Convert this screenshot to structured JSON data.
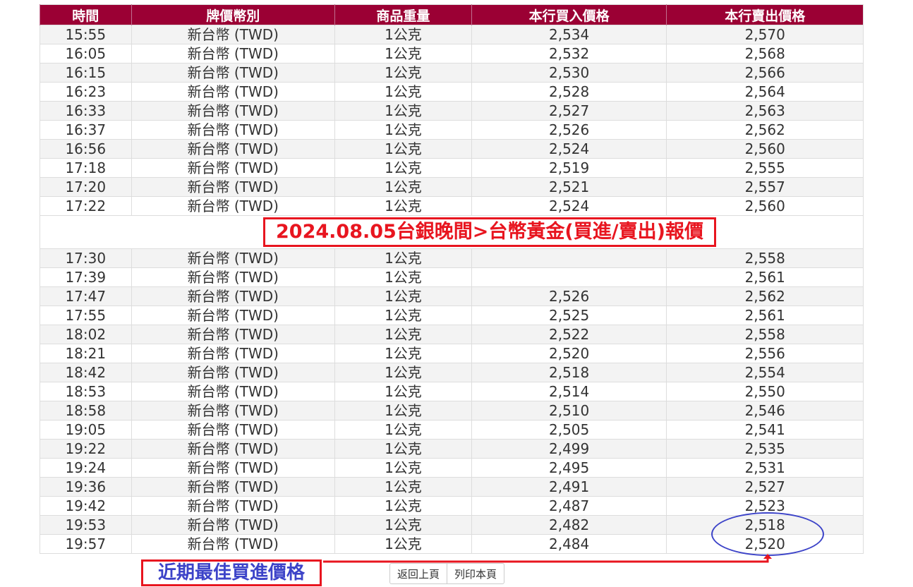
{
  "table": {
    "headers": [
      "時間",
      "牌價幣別",
      "商品重量",
      "本行買入價格",
      "本行賣出價格"
    ],
    "rows": [
      [
        "15:55",
        "新台幣 (TWD)",
        "1公克",
        "2,534",
        "2,570"
      ],
      [
        "16:05",
        "新台幣 (TWD)",
        "1公克",
        "2,532",
        "2,568"
      ],
      [
        "16:15",
        "新台幣 (TWD)",
        "1公克",
        "2,530",
        "2,566"
      ],
      [
        "16:23",
        "新台幣 (TWD)",
        "1公克",
        "2,528",
        "2,564"
      ],
      [
        "16:33",
        "新台幣 (TWD)",
        "1公克",
        "2,527",
        "2,563"
      ],
      [
        "16:37",
        "新台幣 (TWD)",
        "1公克",
        "2,526",
        "2,562"
      ],
      [
        "16:56",
        "新台幣 (TWD)",
        "1公克",
        "2,524",
        "2,560"
      ],
      [
        "17:18",
        "新台幣 (TWD)",
        "1公克",
        "2,519",
        "2,555"
      ],
      [
        "17:20",
        "新台幣 (TWD)",
        "1公克",
        "2,521",
        "2,557"
      ],
      [
        "17:22",
        "新台幣 (TWD)",
        "1公克",
        "2,524",
        "2,560"
      ],
      [
        "17:30",
        "新台幣 (TWD)",
        "1公克",
        "",
        "2,558"
      ],
      [
        "17:39",
        "新台幣 (TWD)",
        "1公克",
        "",
        "2,561"
      ],
      [
        "17:47",
        "新台幣 (TWD)",
        "1公克",
        "2,526",
        "2,562"
      ],
      [
        "17:55",
        "新台幣 (TWD)",
        "1公克",
        "2,525",
        "2,561"
      ],
      [
        "18:02",
        "新台幣 (TWD)",
        "1公克",
        "2,522",
        "2,558"
      ],
      [
        "18:21",
        "新台幣 (TWD)",
        "1公克",
        "2,520",
        "2,556"
      ],
      [
        "18:42",
        "新台幣 (TWD)",
        "1公克",
        "2,518",
        "2,554"
      ],
      [
        "18:53",
        "新台幣 (TWD)",
        "1公克",
        "2,514",
        "2,550"
      ],
      [
        "18:58",
        "新台幣 (TWD)",
        "1公克",
        "2,510",
        "2,546"
      ],
      [
        "19:05",
        "新台幣 (TWD)",
        "1公克",
        "2,505",
        "2,541"
      ],
      [
        "19:22",
        "新台幣 (TWD)",
        "1公克",
        "2,499",
        "2,535"
      ],
      [
        "19:24",
        "新台幣 (TWD)",
        "1公克",
        "2,495",
        "2,531"
      ],
      [
        "19:36",
        "新台幣 (TWD)",
        "1公克",
        "2,491",
        "2,527"
      ],
      [
        "19:42",
        "新台幣 (TWD)",
        "1公克",
        "2,487",
        "2,523"
      ],
      [
        "19:53",
        "新台幣 (TWD)",
        "1公克",
        "2,482",
        "2,518"
      ],
      [
        "19:57",
        "新台幣 (TWD)",
        "1公克",
        "2,484",
        "2,520"
      ]
    ]
  },
  "annotations": {
    "title": "2024.08.05台銀晚間>台幣黃金(買進/賣出)報價",
    "best": "近期最佳買進價格",
    "color_red": "#e8151f",
    "color_blue": "#3c43c8"
  },
  "buttons": {
    "back": "返回上頁",
    "print": "列印本頁"
  },
  "colors": {
    "header_bg": "#9b0034"
  }
}
